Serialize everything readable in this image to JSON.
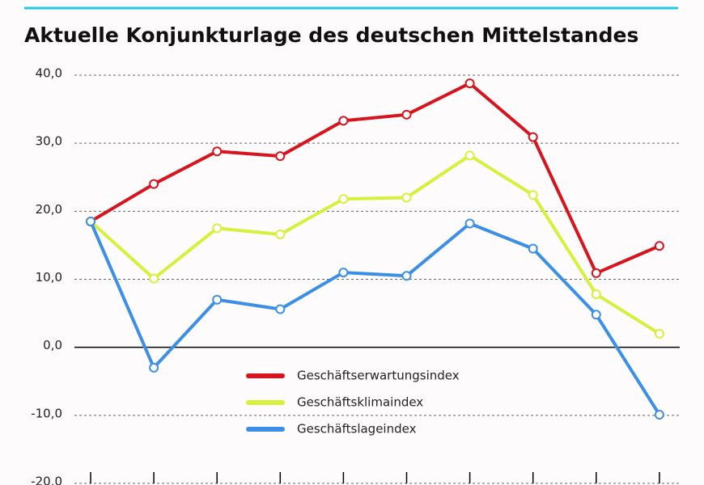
{
  "chart_data": {
    "type": "line",
    "title": "Aktuelle Konjunkturlage des deutschen Mittelstandes",
    "categories": [
      null,
      null,
      null,
      null,
      null,
      null,
      null,
      null,
      null,
      null
    ],
    "series": [
      {
        "name": "Geschäftserwartungsindex",
        "color": "#d7141e",
        "values": [
          18.5,
          24.0,
          28.8,
          28.1,
          33.3,
          34.2,
          38.8,
          30.9,
          10.9,
          14.9
        ]
      },
      {
        "name": "Geschäftsklimaindex",
        "color": "#d6f03c",
        "values": [
          18.5,
          10.1,
          17.5,
          16.6,
          21.8,
          22.0,
          28.2,
          22.4,
          7.8,
          2.0
        ]
      },
      {
        "name": "Geschäftslageindex",
        "color": "#3b8fe6",
        "values": [
          18.5,
          -3.0,
          7.0,
          5.6,
          11.0,
          10.5,
          18.2,
          14.5,
          4.8,
          -9.9
        ]
      }
    ],
    "ylim": [
      -20,
      40
    ],
    "yticks": [
      {
        "value": -20,
        "label": "-20,0"
      },
      {
        "value": -10,
        "label": "-10,0"
      },
      {
        "value": 0,
        "label": "0,0"
      },
      {
        "value": 10,
        "label": "10,0"
      },
      {
        "value": 20,
        "label": "20,0"
      },
      {
        "value": 30,
        "label": "30,0"
      },
      {
        "value": 40,
        "label": "40,0"
      }
    ],
    "grid": true
  }
}
